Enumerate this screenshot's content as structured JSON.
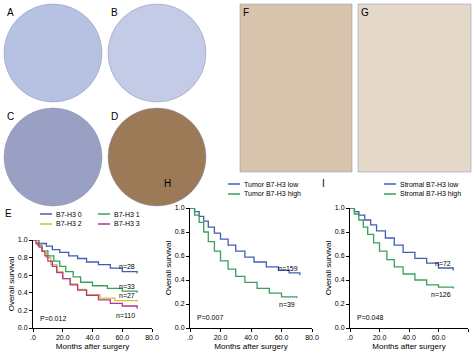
{
  "image_panels": [
    {
      "label": "A"
    },
    {
      "label": "B"
    },
    {
      "label": "C"
    },
    {
      "label": "D"
    },
    {
      "label": "F"
    },
    {
      "label": "G"
    }
  ],
  "chart_data": [
    {
      "panel": "E",
      "type": "line",
      "line_style": "step",
      "xlabel": "Months after surgery",
      "ylabel": "Overall survival",
      "xlim": [
        0,
        80
      ],
      "ylim": [
        0,
        1.0
      ],
      "xticks": [
        {
          "value": 0,
          "label": ".0"
        },
        {
          "value": 20,
          "label": "20.0"
        },
        {
          "value": 40,
          "label": "40.0"
        },
        {
          "value": 60,
          "label": "60.0"
        },
        {
          "value": 80,
          "label": "80.0"
        }
      ],
      "yticks": [
        {
          "value": 0,
          "label": "0.0"
        },
        {
          "value": 0.2,
          "label": "0.2"
        },
        {
          "value": 0.4,
          "label": "0.4"
        },
        {
          "value": 0.6,
          "label": "0.6"
        },
        {
          "value": 0.8,
          "label": "0.8"
        },
        {
          "value": 1.0,
          "label": "1.0"
        }
      ],
      "annotations": [
        "P=0.012"
      ],
      "series": [
        {
          "name": "B7-H3 0",
          "color": "#3f5fb5",
          "annotation": "n=28",
          "x": [
            0,
            4,
            9,
            13,
            18,
            24,
            30,
            36,
            44,
            52,
            60,
            70
          ],
          "values": [
            1,
            0.96,
            0.93,
            0.89,
            0.86,
            0.82,
            0.79,
            0.75,
            0.72,
            0.68,
            0.64,
            0.62
          ]
        },
        {
          "name": "B7-H3 1",
          "color": "#3aa05a",
          "annotation": "n=33",
          "x": [
            0,
            3,
            6,
            10,
            14,
            18,
            22,
            27,
            32,
            40,
            50,
            60,
            70
          ],
          "values": [
            1,
            0.94,
            0.88,
            0.82,
            0.76,
            0.7,
            0.64,
            0.58,
            0.52,
            0.48,
            0.45,
            0.42,
            0.4
          ]
        },
        {
          "name": "B7-H3 2",
          "color": "#c9c43a",
          "annotation": "n=27",
          "x": [
            0,
            3,
            6,
            9,
            12,
            16,
            20,
            25,
            30,
            36,
            45,
            55,
            70
          ],
          "values": [
            1,
            0.95,
            0.88,
            0.8,
            0.72,
            0.64,
            0.56,
            0.5,
            0.44,
            0.38,
            0.34,
            0.31,
            0.3
          ]
        },
        {
          "name": "B7-H3 3",
          "color": "#b8338f",
          "annotation": "n=110",
          "x": [
            0,
            2,
            4,
            6,
            8,
            10,
            13,
            16,
            20,
            25,
            30,
            36,
            44,
            52,
            60,
            70
          ],
          "values": [
            1,
            0.96,
            0.92,
            0.87,
            0.82,
            0.76,
            0.7,
            0.63,
            0.56,
            0.49,
            0.43,
            0.37,
            0.32,
            0.28,
            0.25,
            0.22
          ]
        }
      ]
    },
    {
      "panel": "H",
      "type": "line",
      "line_style": "step",
      "xlabel": "Months after surgery",
      "ylabel": "Overall survival",
      "xlim": [
        0,
        80
      ],
      "ylim": [
        0,
        1.0
      ],
      "xticks": [
        {
          "value": 0,
          "label": ".0"
        },
        {
          "value": 20,
          "label": "20.0"
        },
        {
          "value": 40,
          "label": "40.0"
        },
        {
          "value": 60,
          "label": "60.0"
        },
        {
          "value": 80,
          "label": "80.0"
        }
      ],
      "yticks": [
        {
          "value": 0,
          "label": "0.0"
        },
        {
          "value": 0.2,
          "label": "0.2"
        },
        {
          "value": 0.4,
          "label": "0.4"
        },
        {
          "value": 0.6,
          "label": "0.6"
        },
        {
          "value": 0.8,
          "label": "0.8"
        },
        {
          "value": 1.0,
          "label": "1.0"
        }
      ],
      "annotations": [
        "P=0.007"
      ],
      "series": [
        {
          "name": "Tumor B7-H3 low",
          "color": "#3f5fb5",
          "annotation": "n=159",
          "x": [
            0,
            3,
            6,
            9,
            12,
            16,
            20,
            25,
            30,
            36,
            42,
            50,
            58,
            65,
            72
          ],
          "values": [
            1,
            0.97,
            0.93,
            0.89,
            0.84,
            0.79,
            0.74,
            0.69,
            0.64,
            0.59,
            0.55,
            0.51,
            0.48,
            0.46,
            0.44
          ]
        },
        {
          "name": "Tumor B7-H3 high",
          "color": "#3aa05a",
          "annotation": "n=39",
          "x": [
            0,
            3,
            6,
            9,
            12,
            16,
            20,
            25,
            30,
            36,
            44,
            52,
            60,
            70
          ],
          "values": [
            1,
            0.94,
            0.88,
            0.8,
            0.72,
            0.64,
            0.56,
            0.49,
            0.43,
            0.38,
            0.33,
            0.29,
            0.26,
            0.25
          ]
        }
      ]
    },
    {
      "panel": "I",
      "type": "line",
      "line_style": "step",
      "xlabel": "Months after surgery",
      "ylabel": "Overall survival",
      "xlim": [
        0,
        80
      ],
      "ylim": [
        0,
        1.0
      ],
      "xticks": [
        {
          "value": 0,
          "label": ".0"
        },
        {
          "value": 20,
          "label": "20.0"
        },
        {
          "value": 40,
          "label": "40.0"
        },
        {
          "value": 60,
          "label": "60.0"
        },
        {
          "value": 80,
          "label": "80.0"
        }
      ],
      "yticks": [
        {
          "value": 0,
          "label": "0.0"
        },
        {
          "value": 0.2,
          "label": "0.2"
        },
        {
          "value": 0.4,
          "label": "0.4"
        },
        {
          "value": 0.6,
          "label": "0.6"
        },
        {
          "value": 0.8,
          "label": "0.8"
        },
        {
          "value": 1.0,
          "label": "1.0"
        }
      ],
      "annotations": [
        "P=0.048"
      ],
      "series": [
        {
          "name": "Stromal B7-H3 low",
          "color": "#3f5fb5",
          "annotation": "n=72",
          "x": [
            0,
            3,
            6,
            10,
            14,
            18,
            24,
            30,
            36,
            44,
            52,
            60,
            70
          ],
          "values": [
            1,
            0.97,
            0.94,
            0.9,
            0.86,
            0.81,
            0.75,
            0.69,
            0.63,
            0.58,
            0.54,
            0.5,
            0.48
          ]
        },
        {
          "name": "Stromal B7-H3 high",
          "color": "#3aa05a",
          "annotation": "n=126",
          "x": [
            0,
            3,
            6,
            9,
            12,
            16,
            20,
            25,
            30,
            36,
            44,
            52,
            60,
            70
          ],
          "values": [
            1,
            0.95,
            0.9,
            0.84,
            0.78,
            0.71,
            0.64,
            0.57,
            0.51,
            0.45,
            0.4,
            0.36,
            0.34,
            0.33
          ]
        }
      ]
    }
  ]
}
